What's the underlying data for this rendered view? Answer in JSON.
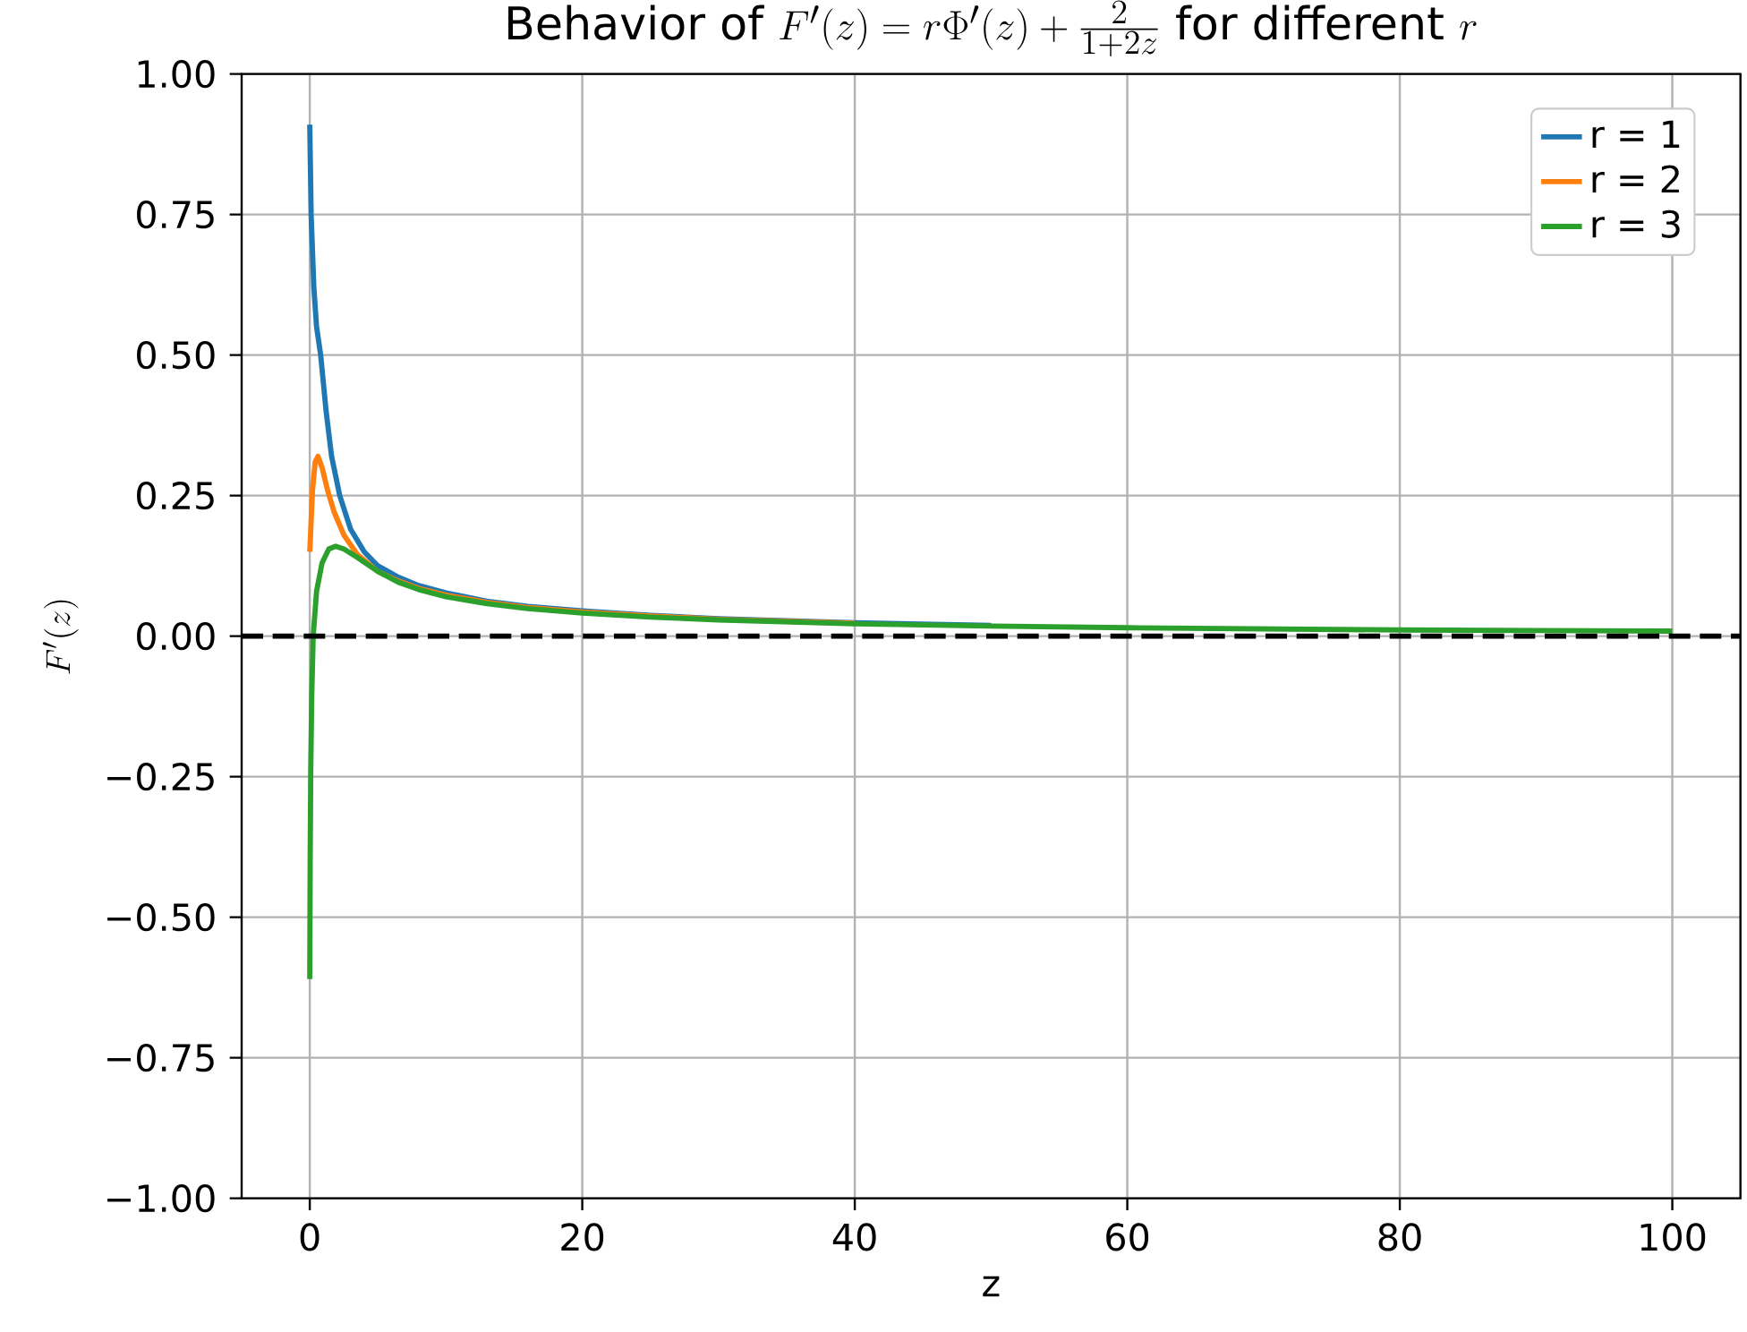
{
  "chart_data": {
    "type": "line",
    "title": "\\text{Behavior of } F'(z) = r\\Phi'(z) + \\frac{2}{1+2z} \\text{ for different } r",
    "xlabel": "z",
    "ylabel": "F'(z)",
    "xlim": [
      -5,
      105
    ],
    "ylim": [
      -1,
      1
    ],
    "xticks": [
      0,
      20,
      40,
      60,
      80,
      100
    ],
    "yticks": [
      {
        "value": -1,
        "label": "−1.00"
      },
      {
        "value": -0.75,
        "label": "−0.75"
      },
      {
        "value": -0.5,
        "label": "−0.50"
      },
      {
        "value": -0.25,
        "label": "−0.25"
      },
      {
        "value": 0,
        "label": "0.00"
      },
      {
        "value": 0.25,
        "label": "0.25"
      },
      {
        "value": 0.5,
        "label": "0.50"
      },
      {
        "value": 0.75,
        "label": "0.75"
      },
      {
        "value": 1,
        "label": "1.00"
      }
    ],
    "grid": true,
    "legend": "top right",
    "ref_lines": [
      {
        "axis": "y",
        "value": 0,
        "color": "#000000",
        "line_style": "dashed"
      }
    ],
    "series": [
      {
        "name": "r = 1",
        "color": "#1f77b4",
        "x": [
          0,
          0.1,
          0.3,
          0.5,
          0.8,
          1.2,
          1.6,
          2.2,
          3,
          4,
          5,
          6.5,
          8,
          10,
          13,
          16,
          20,
          25,
          30,
          40,
          50
        ],
        "values": [
          0.91,
          0.75,
          0.62,
          0.55,
          0.5,
          0.4,
          0.32,
          0.25,
          0.19,
          0.15,
          0.125,
          0.105,
          0.09,
          0.077,
          0.062,
          0.053,
          0.045,
          0.037,
          0.031,
          0.024,
          0.019
        ]
      },
      {
        "name": "r = 2",
        "color": "#ff7f0e",
        "x": [
          0,
          0.2,
          0.4,
          0.6,
          0.9,
          1.3,
          1.8,
          2.5,
          3.5,
          5,
          6.5,
          8,
          10,
          13,
          16,
          20,
          25,
          30,
          40
        ],
        "values": [
          0.15,
          0.26,
          0.31,
          0.32,
          0.3,
          0.26,
          0.22,
          0.18,
          0.145,
          0.115,
          0.098,
          0.085,
          0.073,
          0.06,
          0.051,
          0.043,
          0.036,
          0.03,
          0.023
        ]
      },
      {
        "name": "r = 3",
        "color": "#2ca02c",
        "x": [
          0,
          0.03,
          0.07,
          0.15,
          0.25,
          0.5,
          0.9,
          1.4,
          1.9,
          2.5,
          3.5,
          5,
          6.5,
          8,
          10,
          13,
          16,
          20,
          25,
          30,
          40,
          50,
          60,
          70,
          80,
          90,
          100
        ],
        "values": [
          -0.61,
          -0.4,
          -0.24,
          -0.1,
          0,
          0.08,
          0.13,
          0.155,
          0.16,
          0.155,
          0.14,
          0.115,
          0.096,
          0.083,
          0.07,
          0.058,
          0.049,
          0.041,
          0.034,
          0.029,
          0.022,
          0.018,
          0.015,
          0.013,
          0.011,
          0.01,
          0.009
        ]
      }
    ]
  }
}
